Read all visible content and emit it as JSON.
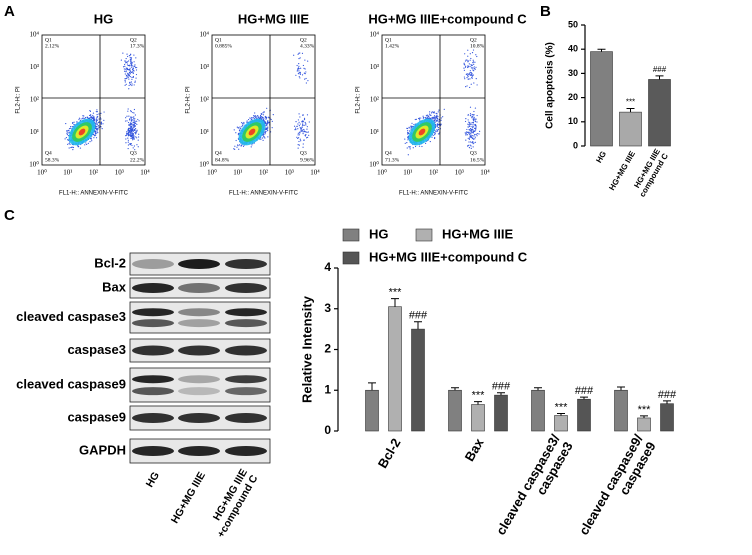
{
  "panel_labels": [
    "A",
    "B",
    "C"
  ],
  "flow": {
    "x_label": "FL1-H:: ANNEXIN-V-FITC",
    "y_label": "FL2-H:: PI",
    "ticks": [
      "10⁰",
      "10¹",
      "10²",
      "10³",
      "10⁴"
    ],
    "plots": [
      {
        "title": "HG",
        "q1": "Q1",
        "q1_pct": "2.12%",
        "q2": "Q2",
        "q2_pct": "17.3%",
        "q3": "Q3",
        "q3_pct": "22.2%",
        "q4": "Q4",
        "q4_pct": "58.3%"
      },
      {
        "title": "HG+MG IIIE",
        "q1": "Q1",
        "q1_pct": "0.885%",
        "q2": "Q2",
        "q2_pct": "4.33%",
        "q3": "Q3",
        "q3_pct": "9.96%",
        "q4": "Q4",
        "q4_pct": "84.8%"
      },
      {
        "title": "HG+MG IIIE+compound C",
        "q1": "Q1",
        "q1_pct": "1.42%",
        "q2": "Q2",
        "q2_pct": "10.8%",
        "q3": "Q3",
        "q3_pct": "16.5%",
        "q4": "Q4",
        "q4_pct": "71.3%"
      }
    ]
  },
  "blot": {
    "rows": [
      "Bcl-2",
      "Bax",
      "cleaved caspase3",
      "caspase3",
      "cleaved caspase9",
      "caspase9",
      "GAPDH"
    ],
    "lanes": [
      "HG",
      "HG+MG IIIE",
      "HG+MG IIIE\n+compound C"
    ]
  },
  "chart_data": [
    {
      "type": "bar",
      "y_label": "Cell apoptosis (%)",
      "categories": [
        "HG",
        "HG+MG IIIE",
        "HG+MG IIIE\ncompound C"
      ],
      "series": [
        {
          "name": null,
          "colors": [
            "#808080",
            "#a9a9a9",
            "#5a5a5a"
          ],
          "values": [
            39,
            14,
            27.5
          ],
          "errors": [
            1,
            1.5,
            1.5
          ],
          "value_annotations": [
            null,
            "***",
            "###"
          ]
        }
      ],
      "ylim": [
        0,
        50
      ],
      "yticks": [
        0,
        10,
        20,
        30,
        40,
        50
      ],
      "grid": false
    },
    {
      "type": "bar",
      "y_label": "Relative Intensity",
      "categories": [
        "Bcl-2",
        "Bax",
        "cleaved caspase3/\ncaspase3",
        "cleaved caspase9/\ncaspase9"
      ],
      "series": [
        {
          "name": "HG",
          "color": "#808080",
          "values": [
            1,
            1,
            1,
            1
          ],
          "errors": [
            0.18,
            0.06,
            0.06,
            0.08
          ],
          "value_annotations": [
            null,
            null,
            null,
            null
          ]
        },
        {
          "name": "HG+MG IIIE",
          "color": "#b0b0b0",
          "values": [
            3.05,
            0.65,
            0.38,
            0.32
          ],
          "errors": [
            0.2,
            0.07,
            0.05,
            0.05
          ],
          "value_annotations": [
            "***",
            "***",
            "***",
            "***"
          ]
        },
        {
          "name": "HG+MG IIIE+compound C",
          "color": "#555555",
          "values": [
            2.5,
            0.88,
            0.78,
            0.67
          ],
          "errors": [
            0.18,
            0.06,
            0.05,
            0.07
          ],
          "value_annotations": [
            "###",
            "###",
            "###",
            "###"
          ]
        }
      ],
      "ylim": [
        0,
        4
      ],
      "yticks": [
        0,
        1,
        2,
        3,
        4
      ],
      "grid": false,
      "legend": "top"
    }
  ]
}
